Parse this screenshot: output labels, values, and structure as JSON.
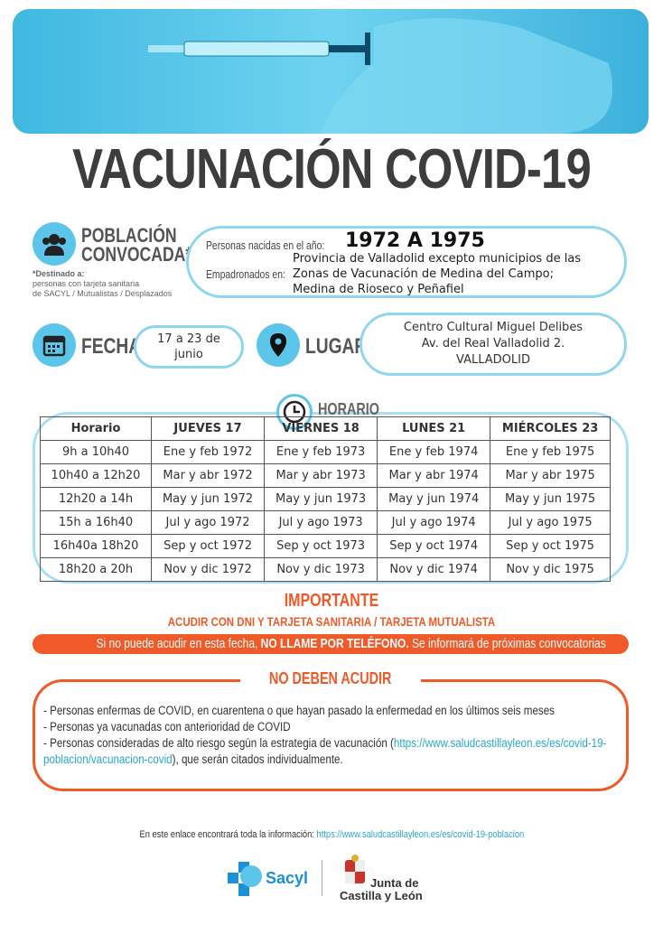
{
  "title": "VACUNACIÓN COVID-19",
  "colors": {
    "blue": "#5cc6ea",
    "orange": "#f05a28",
    "dark": "#3d3d3d"
  },
  "poblacion": {
    "heading1": "POBLACIÓN",
    "heading2": "CONVOCADA*",
    "dest_label": "*Destinado a:",
    "dest_line1": "personas con tarjeta sanitaria",
    "dest_line2": "de SACYL / Mutualistas / Desplazados",
    "icon": "people-icon"
  },
  "nacidos": {
    "label": "Personas nacidas en el año:",
    "value": "1972 A 1975",
    "emp_label": "Empadronados en:",
    "emp_lines": [
      "Provincia de Valladolid excepto municipios de las",
      "Zonas de Vacunación de Medina del Campo;",
      "Medina de Rioseco y Peñafiel"
    ]
  },
  "fecha": {
    "label": "FECHA",
    "value1": "17 a 23 de",
    "value2": "junio",
    "icon": "calendar-icon"
  },
  "lugar": {
    "label": "LUGAR",
    "lines": [
      "Centro Cultural Miguel Delibes",
      "Av. del Real Valladolid 2.",
      "VALLADOLID"
    ],
    "icon": "location-pin-icon"
  },
  "horario": {
    "label": "HORARIO",
    "icon": "clock-icon",
    "headers": [
      "Horario",
      "JUEVES 17",
      "VIERNES 18",
      "LUNES 21",
      "MIÉRCOLES 23"
    ],
    "rows": [
      [
        "9h a 10h40",
        "Ene y feb 1972",
        "Ene y feb 1973",
        "Ene y feb 1974",
        "Ene y feb 1975"
      ],
      [
        "10h40 a 12h20",
        "Mar y abr 1972",
        "Mar y abr 1973",
        "Mar y abr 1974",
        "Mar y abr 1975"
      ],
      [
        "12h20 a 14h",
        "May y jun 1972",
        "May y jun 1973",
        "May y jun 1974",
        "May y jun 1975"
      ],
      [
        "15h a 16h40",
        "Jul y ago 1972",
        "Jul y ago 1973",
        "Jul y ago 1974",
        "Jul y ago 1975"
      ],
      [
        "16h40a 18h20",
        "Sep y oct 1972",
        "Sep y oct 1973",
        "Sep y oct 1974",
        "Sep y oct 1975"
      ],
      [
        "18h20 a 20h",
        "Nov y dic 1972",
        "Nov y dic 1973",
        "Nov y dic 1974",
        "Nov y dic 1975"
      ]
    ]
  },
  "importante": {
    "title": "IMPORTANTE",
    "subtitle": "ACUDIR CON DNI Y TARJETA SANITARIA / TARJETA MUTUALISTA",
    "banner_pre": "Si no puede acudir en esta fecha, ",
    "banner_bold": "NO LLAME POR TELÉFONO.",
    "banner_post": " Se informará de próximas convocatorias"
  },
  "no_acudir": {
    "title": "NO DEBEN ACUDIR",
    "item1": "- Personas enfermas de COVID, en cuarentena o que hayan pasado la enfermedad en los últimos seis meses",
    "item2": "- Personas ya vacunadas con anterioridad de COVID",
    "item3_pre": "- Personas consideradas de alto riesgo según la estrategia de vacunación (",
    "item3_link": "https://www.saludcastillayleon.es/es/covid-19-poblacion/vacunacion-covid",
    "item3_post": "), que serán citados individualmente."
  },
  "footer": {
    "text": "En este enlace encontrará toda la información: ",
    "link": "https://www.saludcastillayleon.es/es/covid-19-poblacion",
    "sacyl": "Sacyl",
    "junta1": "Junta de",
    "junta2": "Castilla y León"
  }
}
